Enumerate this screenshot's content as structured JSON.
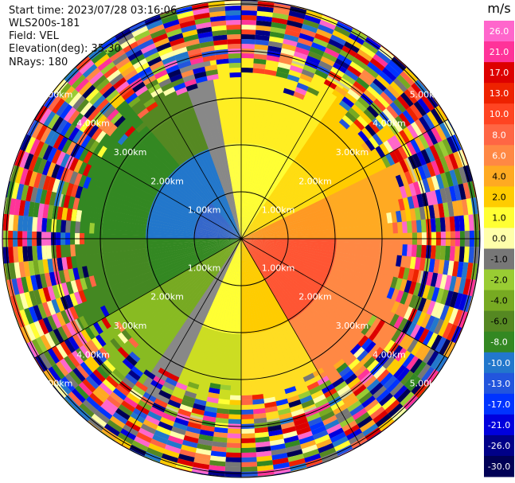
{
  "info": {
    "start_time": "Start time: 2023/07/28 03:16:06",
    "instrument": "WLS200s-181",
    "field": "Field: VEL",
    "elevation": "Elevation(deg): 35.30",
    "nrays": "NRays: 180"
  },
  "colorbar": {
    "unit": "m/s",
    "ticks": [
      "26.0",
      "21.0",
      "17.0",
      "13.0",
      "10.0",
      "8.0",
      "6.0",
      "4.0",
      "2.0",
      "1.0",
      "0.0",
      "-1.0",
      "-2.0",
      "-4.0",
      "-6.0",
      "-8.0",
      "-10.0",
      "-13.0",
      "-17.0",
      "-21.0",
      "-26.0",
      "-30.0"
    ],
    "colors": [
      "#ff66cc",
      "#ff3399",
      "#dd0000",
      "#ee2200",
      "#ff4422",
      "#ff6644",
      "#ff8844",
      "#ffaa22",
      "#ffcc00",
      "#ffff33",
      "#ffffaa",
      "#777777",
      "#99cc33",
      "#77aa22",
      "#558822",
      "#338822",
      "#2277cc",
      "#2255dd",
      "#0033ff",
      "#0000dd",
      "#000088",
      "#000055"
    ]
  },
  "ring_labels": [
    "1.00km",
    "2.00km",
    "3.00km",
    "4.00km",
    "5.00km"
  ]
}
